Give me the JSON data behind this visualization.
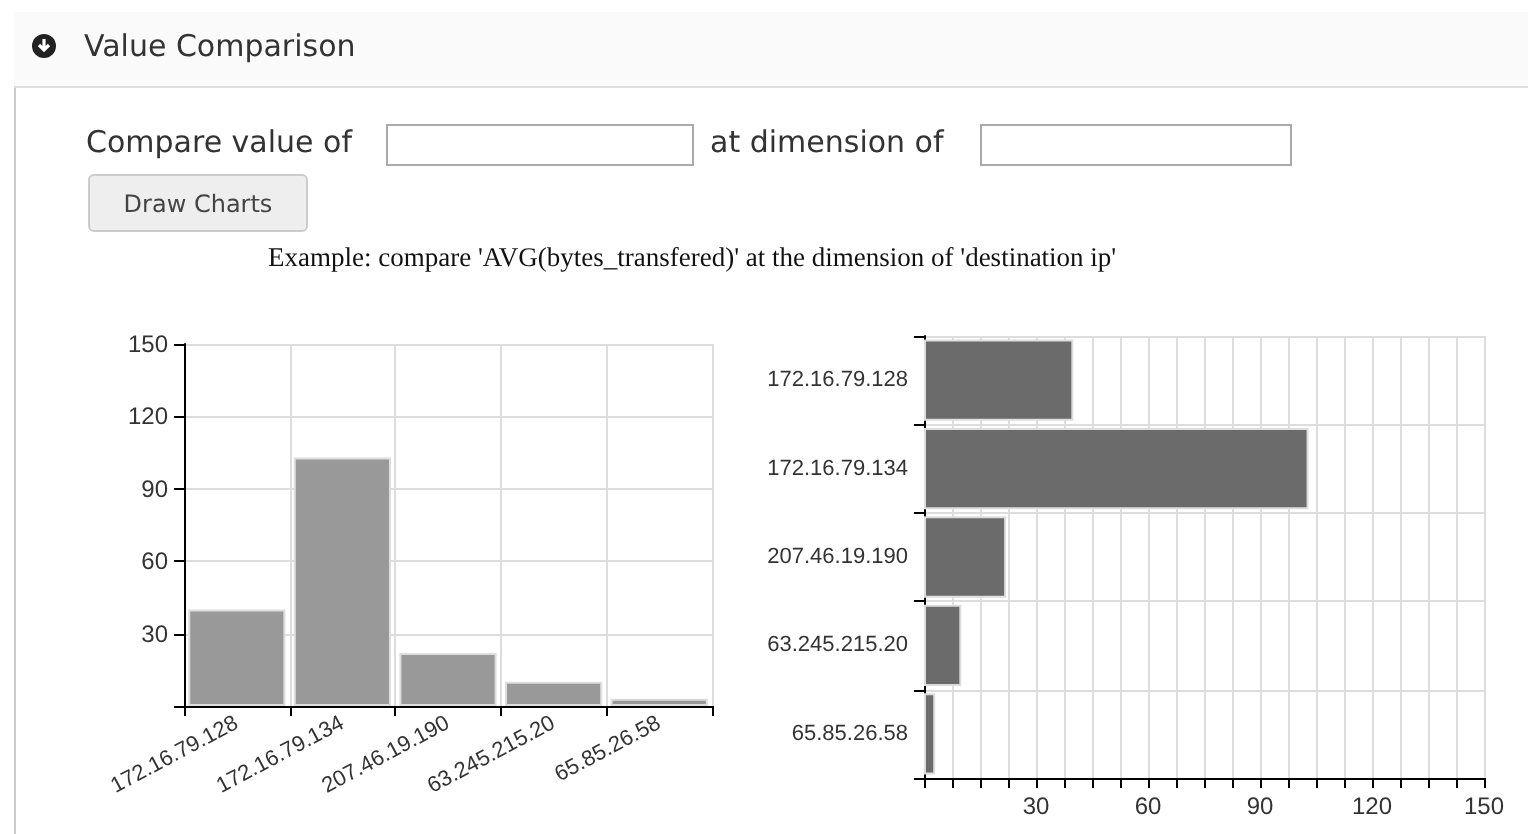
{
  "chart_data": [
    {
      "type": "bar",
      "title": "Value Comparison",
      "annotations": [
        "Compare value of",
        "at dimension of",
        "Draw Charts",
        "Example: compare 'AVG(bytes_transfered)' at the dimension of 'destination ip'"
      ],
      "categories": [
        "172.16.79.128",
        "172.16.79.134",
        "207.46.19.190",
        "63.245.215.20",
        "65.85.26.58"
      ],
      "values": [
        40,
        103,
        22,
        10,
        3
      ],
      "color": "#999999",
      "ylim": [
        0,
        150
      ],
      "yticks": [
        {
          "value": 0,
          "label": null
        },
        30,
        60,
        90,
        120,
        150
      ],
      "grid": true
    },
    {
      "type": "bar",
      "orientation": "horizontal",
      "categories": [
        "172.16.79.128",
        "172.16.79.134",
        "207.46.19.190",
        "63.245.215.20",
        "65.85.26.58"
      ],
      "values": [
        40,
        103,
        22,
        10,
        3
      ],
      "color": "#6b6b6b",
      "xlim": [
        0,
        150
      ],
      "xticks": [
        {
          "value": 0,
          "label": null
        },
        {
          "value": 7.5,
          "label": null
        },
        {
          "value": 15,
          "label": null
        },
        {
          "value": 22.5,
          "label": null
        },
        30,
        {
          "value": 37.5,
          "label": null
        },
        {
          "value": 45,
          "label": null
        },
        {
          "value": 52.5,
          "label": null
        },
        60,
        {
          "value": 67.5,
          "label": null
        },
        {
          "value": 75,
          "label": null
        },
        {
          "value": 82.5,
          "label": null
        },
        90,
        {
          "value": 97.5,
          "label": null
        },
        {
          "value": 105,
          "label": null
        },
        {
          "value": 112.5,
          "label": null
        },
        120,
        {
          "value": 127.5,
          "label": null
        },
        {
          "value": 135,
          "label": null
        },
        {
          "value": 142.5,
          "label": null
        },
        150
      ],
      "grid": true
    }
  ]
}
